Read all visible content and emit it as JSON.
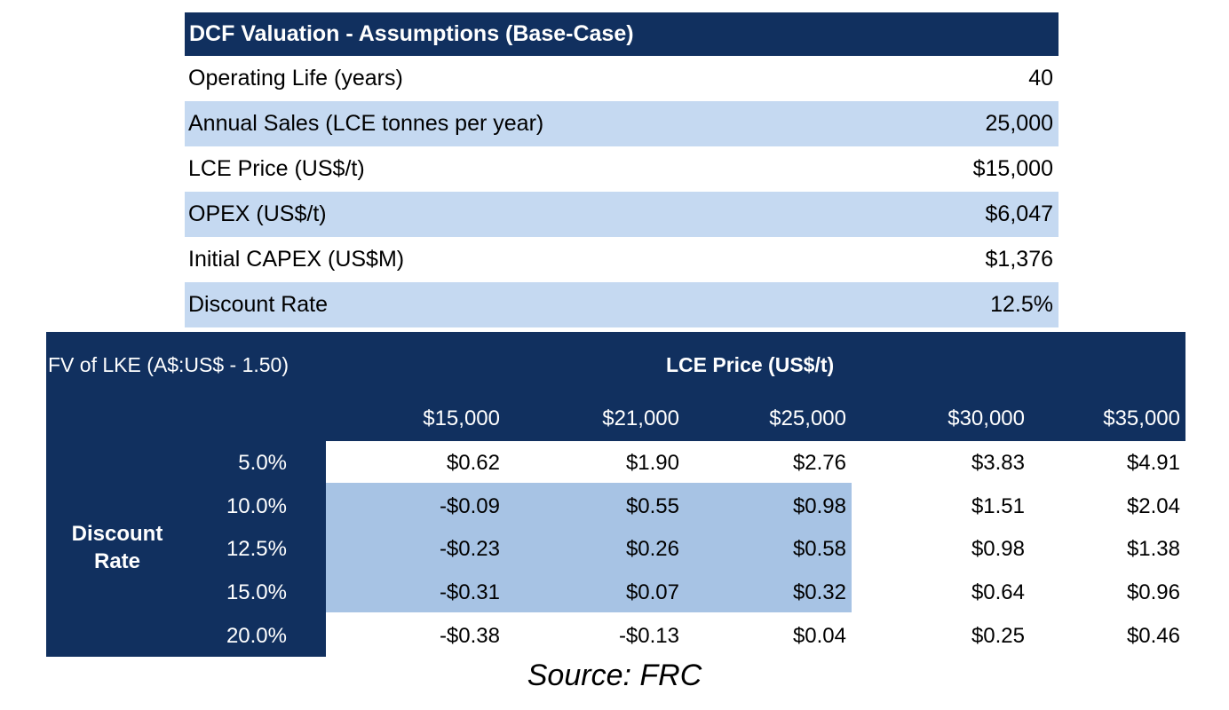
{
  "assumptions": {
    "title": "DCF Valuation - Assumptions (Base-Case)",
    "rows": [
      {
        "label": "Operating Life (years)",
        "value": "40"
      },
      {
        "label": "Annual Sales (LCE tonnes per year)",
        "value": "25,000"
      },
      {
        "label": "LCE Price (US$/t)",
        "value": "$15,000"
      },
      {
        "label": "OPEX (US$/t)",
        "value": "$6,047"
      },
      {
        "label": "Initial CAPEX (US$M)",
        "value": "$1,376"
      },
      {
        "label": "Discount Rate",
        "value": "12.5%"
      }
    ]
  },
  "sensitivity": {
    "title": "FV of LKE (A$:US$ - 1.50)",
    "column_axis_label": "LCE Price (US$/t)",
    "row_axis_label_line1": "Discount",
    "row_axis_label_line2": "Rate",
    "columns": [
      "$15,000",
      "$21,000",
      "$25,000",
      "$30,000",
      "$35,000"
    ],
    "rows": [
      {
        "rate": "5.0%",
        "values": [
          "$0.62",
          "$1.90",
          "$2.76",
          "$3.83",
          "$4.91"
        ]
      },
      {
        "rate": "10.0%",
        "values": [
          "-$0.09",
          "$0.55",
          "$0.98",
          "$1.51",
          "$2.04"
        ]
      },
      {
        "rate": "12.5%",
        "values": [
          "-$0.23",
          "$0.26",
          "$0.58",
          "$0.98",
          "$1.38"
        ]
      },
      {
        "rate": "15.0%",
        "values": [
          "-$0.31",
          "$0.07",
          "$0.32",
          "$0.64",
          "$0.96"
        ]
      },
      {
        "rate": "20.0%",
        "values": [
          "-$0.38",
          "-$0.13",
          "$0.04",
          "$0.25",
          "$0.46"
        ]
      }
    ]
  },
  "source": "Source: FRC",
  "colors": {
    "header_navy": "#11305f",
    "row_shade": "#c5d9f1",
    "highlight_blue": "#a7c3e4"
  }
}
